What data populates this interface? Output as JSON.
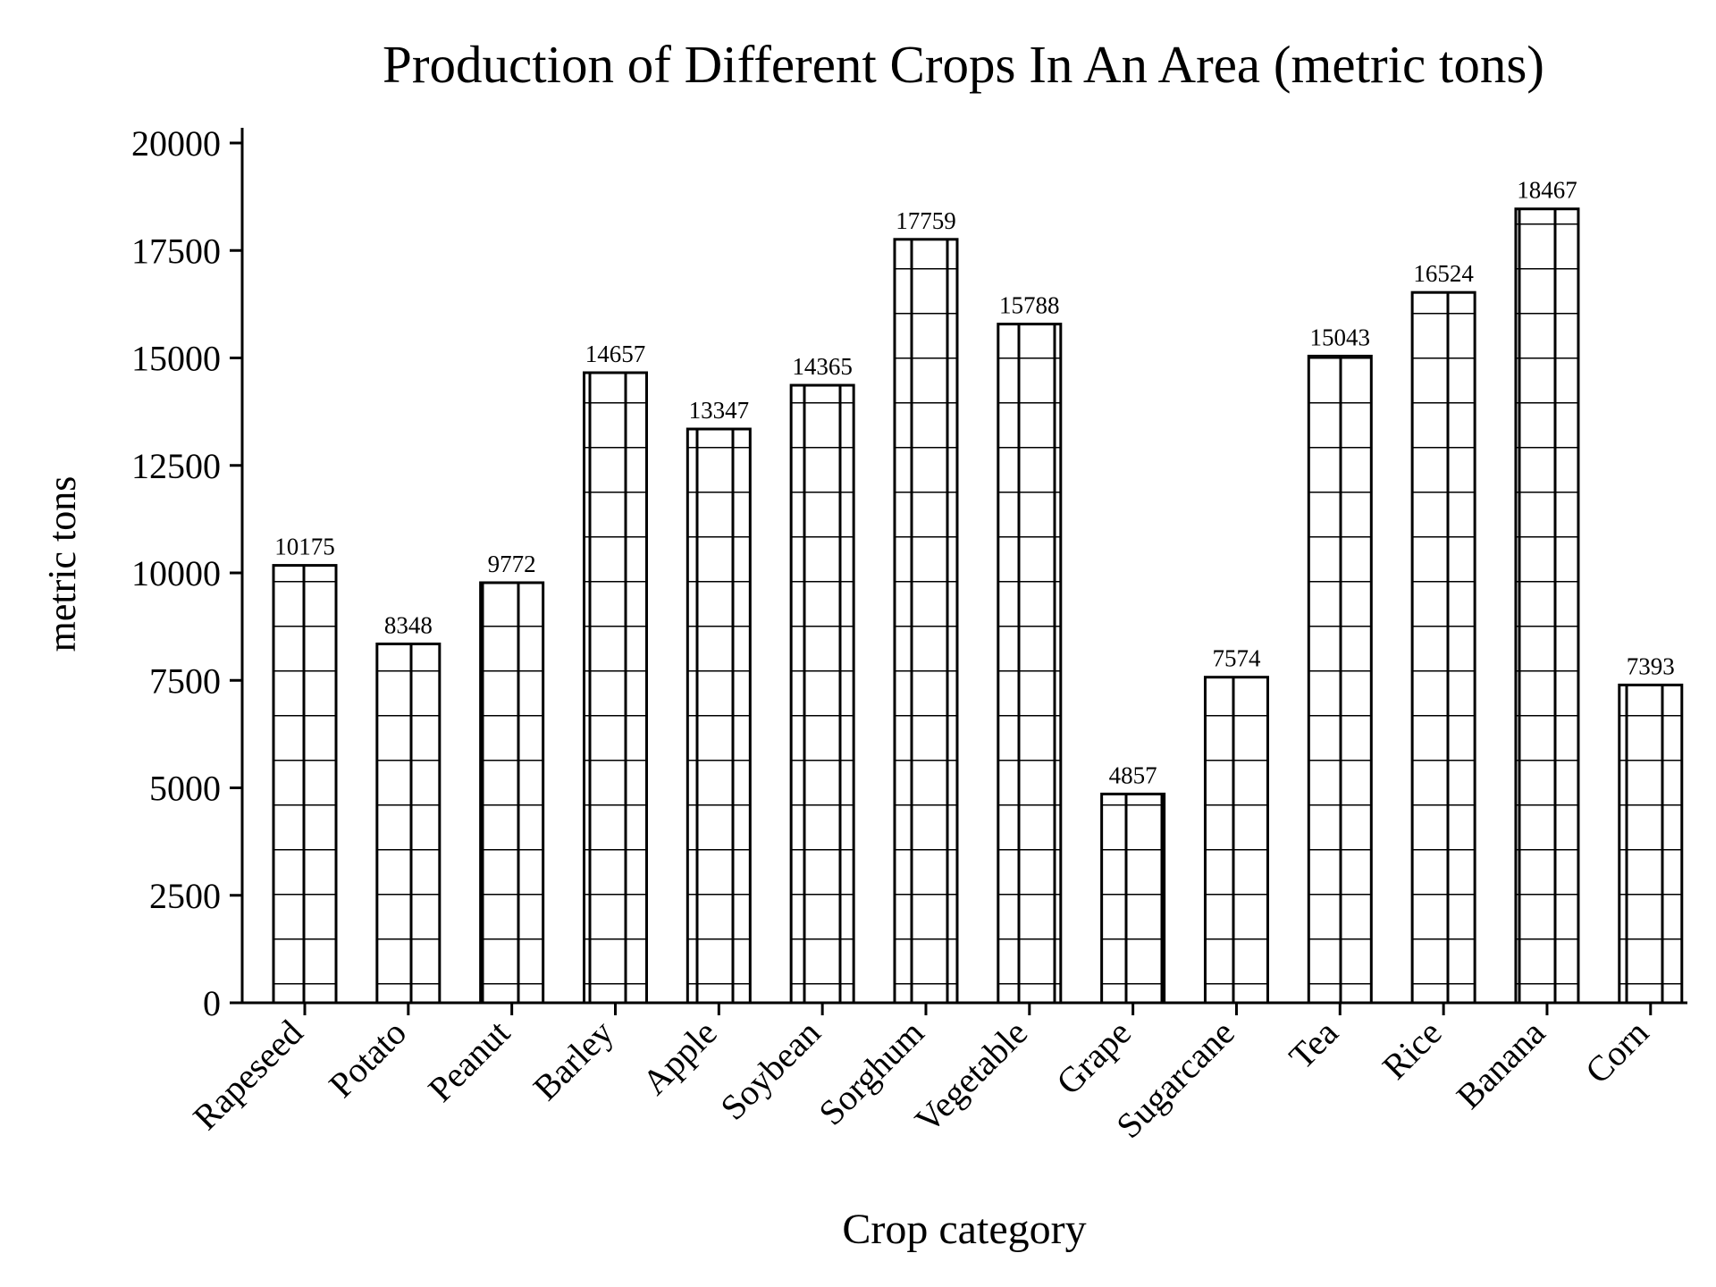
{
  "chart_data": {
    "type": "bar",
    "title": "Production of Different Crops In An Area (metric tons)",
    "xlabel": "Crop category",
    "ylabel": "metric tons",
    "categories": [
      "Rapeseed",
      "Potato",
      "Peanut",
      "Barley",
      "Apple",
      "Soybean",
      "Sorghum",
      "Vegetable",
      "Grape",
      "Sugarcane",
      "Tea",
      "Rice",
      "Banana",
      "Corn"
    ],
    "values": [
      10175,
      8348,
      9772,
      14657,
      13347,
      14365,
      17759,
      15788,
      4857,
      7574,
      15043,
      16524,
      18467,
      7393
    ],
    "data_labels": [
      "10175",
      "8348",
      "9772",
      "14657",
      "13347",
      "14365",
      "17759",
      "15788",
      "4857",
      "7574",
      "15043",
      "16524",
      "18467",
      "7393"
    ],
    "ylim": [
      0,
      20400
    ],
    "yticks": [
      0,
      2500,
      5000,
      7500,
      10000,
      12500,
      15000,
      17500,
      20000
    ],
    "ytick_labels": [
      "0",
      "2500",
      "5000",
      "7500",
      "10000",
      "12500",
      "15000",
      "17500",
      "20000"
    ],
    "grid": false,
    "legend": "none",
    "bar_fill": "#ffffff",
    "bar_edge_color": "#000000",
    "hatch": "grid",
    "hatch_color": "#000000"
  }
}
